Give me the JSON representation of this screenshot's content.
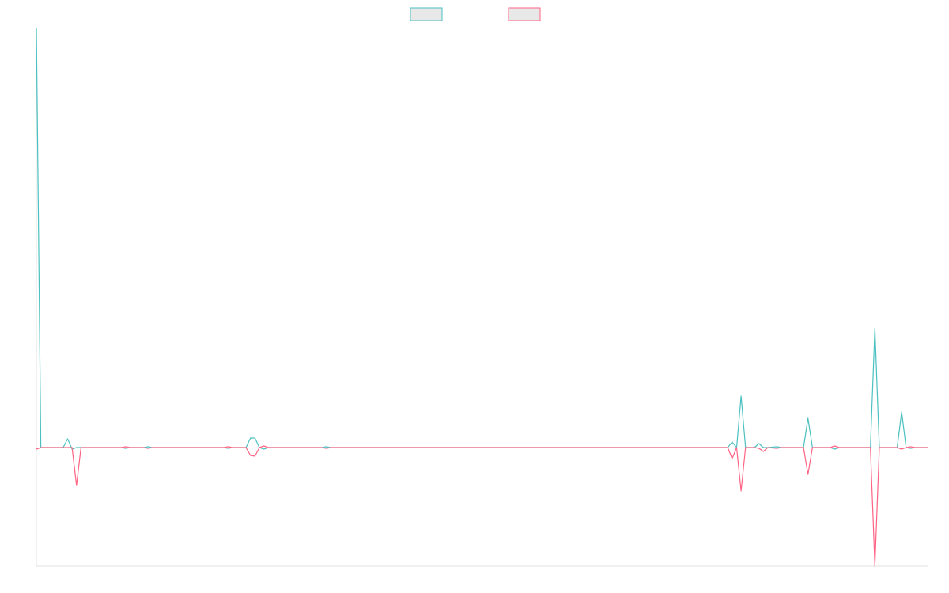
{
  "chart_data": {
    "type": "line",
    "x": [
      0,
      1,
      6,
      7,
      8,
      9,
      10,
      19,
      20,
      21,
      24,
      25,
      26,
      42,
      43,
      44,
      47,
      48,
      49,
      50,
      51,
      52,
      64,
      65,
      66,
      155,
      156,
      157,
      158,
      159,
      161,
      162,
      163,
      164,
      166,
      167,
      172,
      173,
      174,
      178,
      179,
      180,
      187,
      188,
      189,
      193,
      194,
      195,
      196,
      197,
      200
    ],
    "xlim": [
      0,
      200
    ],
    "ylim": [
      -1.5,
      5.31
    ],
    "series": [
      {
        "color": "#4bc0c0",
        "values": [
          5.31,
          0,
          0,
          0.11,
          -0.02,
          0,
          0,
          0,
          -0.01,
          0,
          0,
          0.01,
          0,
          0,
          -0.01,
          0,
          0,
          0.12,
          0.12,
          0,
          -0.02,
          0,
          0,
          0.01,
          0,
          0,
          0.07,
          0,
          0.65,
          0,
          0,
          0.05,
          0,
          0,
          0.01,
          0,
          0,
          0.37,
          0,
          0,
          -0.02,
          0,
          0,
          1.51,
          0,
          0,
          0.45,
          0,
          -0.01,
          0,
          0
        ]
      },
      {
        "color": "#ff6384",
        "values": [
          -0.02,
          0,
          0,
          0,
          0,
          -0.48,
          0,
          0,
          0.01,
          0,
          0,
          -0.01,
          0,
          0,
          0.01,
          0,
          0,
          -0.1,
          -0.11,
          0,
          0.02,
          0,
          0,
          -0.01,
          0,
          0,
          -0.14,
          0,
          -0.55,
          0,
          0,
          -0.01,
          -0.05,
          0,
          -0.01,
          0,
          0,
          -0.34,
          0,
          0,
          0.02,
          0,
          0,
          -1.5,
          0,
          0,
          -0.02,
          0,
          0.01,
          0,
          0
        ]
      }
    ]
  }
}
